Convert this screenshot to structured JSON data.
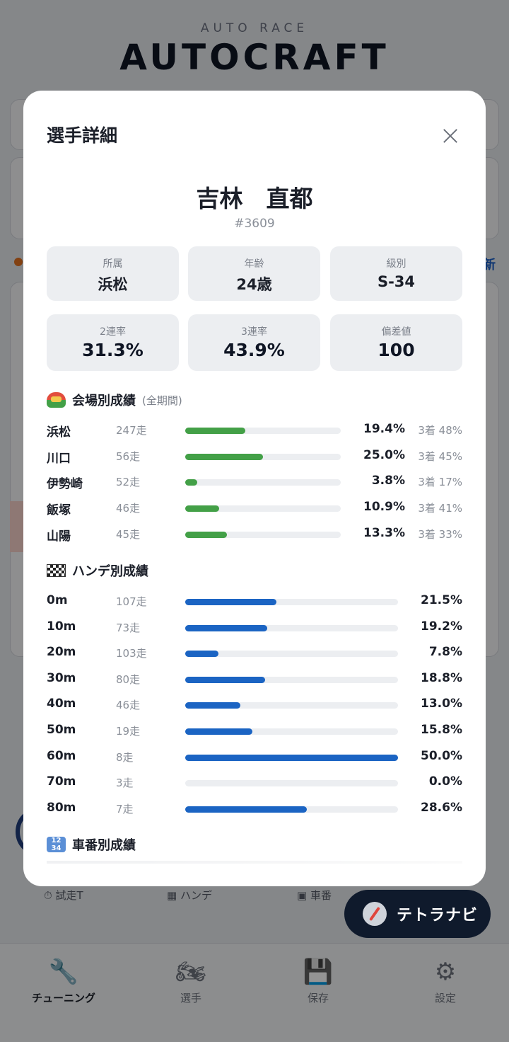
{
  "brand": {
    "subtitle": "AUTO RACE",
    "title": "AUTOCRAFT"
  },
  "background": {
    "partial_text": "新",
    "tabs": [
      {
        "label": "試走T",
        "icon": "stopwatch-icon"
      },
      {
        "label": "ハンデ",
        "icon": "checkered-flag-icon"
      },
      {
        "label": "車番",
        "icon": "numbers-icon"
      }
    ]
  },
  "fab": {
    "label": "テトラナビ",
    "icon": "compass-icon"
  },
  "bottom_nav": [
    {
      "label": "チューニング",
      "icon": "wrench-icon",
      "active": true
    },
    {
      "label": "選手",
      "icon": "motorcycle-icon",
      "active": false
    },
    {
      "label": "保存",
      "icon": "floppy-disk-icon",
      "active": false
    },
    {
      "label": "設定",
      "icon": "gear-icon",
      "active": false
    }
  ],
  "modal": {
    "title": "選手詳細",
    "player": {
      "name": "吉林　直都",
      "id": "#3609"
    },
    "info": [
      {
        "label": "所属",
        "value": "浜松"
      },
      {
        "label": "年齢",
        "value": "24歳"
      },
      {
        "label": "級別",
        "value": "S-34"
      }
    ],
    "rates": [
      {
        "label": "2連率",
        "value": "31.3%"
      },
      {
        "label": "3連率",
        "value": "43.9%"
      },
      {
        "label": "偏差値",
        "value": "100"
      }
    ],
    "venue_section": {
      "title": "会場別成績",
      "subtitle": "(全期間)",
      "icon": "stadium-icon",
      "rows": [
        {
          "name": "浜松",
          "runs": "247走",
          "rate": 0.194,
          "pct": "19.4%",
          "third": "3着 48%"
        },
        {
          "name": "川口",
          "runs": "56走",
          "rate": 0.25,
          "pct": "25.0%",
          "third": "3着 45%"
        },
        {
          "name": "伊勢崎",
          "runs": "52走",
          "rate": 0.038,
          "pct": "3.8%",
          "third": "3着 17%"
        },
        {
          "name": "飯塚",
          "runs": "46走",
          "rate": 0.109,
          "pct": "10.9%",
          "third": "3着 41%"
        },
        {
          "name": "山陽",
          "runs": "45走",
          "rate": 0.133,
          "pct": "13.3%",
          "third": "3着 33%"
        }
      ]
    },
    "hande_section": {
      "title": "ハンデ別成績",
      "icon": "checkered-flag-icon",
      "rows": [
        {
          "name": "0m",
          "runs": "107走",
          "rate": 0.215,
          "pct": "21.5%"
        },
        {
          "name": "10m",
          "runs": "73走",
          "rate": 0.192,
          "pct": "19.2%"
        },
        {
          "name": "20m",
          "runs": "103走",
          "rate": 0.078,
          "pct": "7.8%"
        },
        {
          "name": "30m",
          "runs": "80走",
          "rate": 0.188,
          "pct": "18.8%"
        },
        {
          "name": "40m",
          "runs": "46走",
          "rate": 0.13,
          "pct": "13.0%"
        },
        {
          "name": "50m",
          "runs": "19走",
          "rate": 0.158,
          "pct": "15.8%"
        },
        {
          "name": "60m",
          "runs": "8走",
          "rate": 0.5,
          "pct": "50.0%"
        },
        {
          "name": "70m",
          "runs": "3走",
          "rate": 0.0,
          "pct": "0.0%"
        },
        {
          "name": "80m",
          "runs": "7走",
          "rate": 0.286,
          "pct": "28.6%"
        }
      ]
    },
    "car_section": {
      "title": "車番別成績",
      "icon": "numbers-icon"
    }
  },
  "colors": {
    "venue_bar": "#43a047",
    "hande_bar": "#1b64c3",
    "fab": "#0f1a2c"
  }
}
